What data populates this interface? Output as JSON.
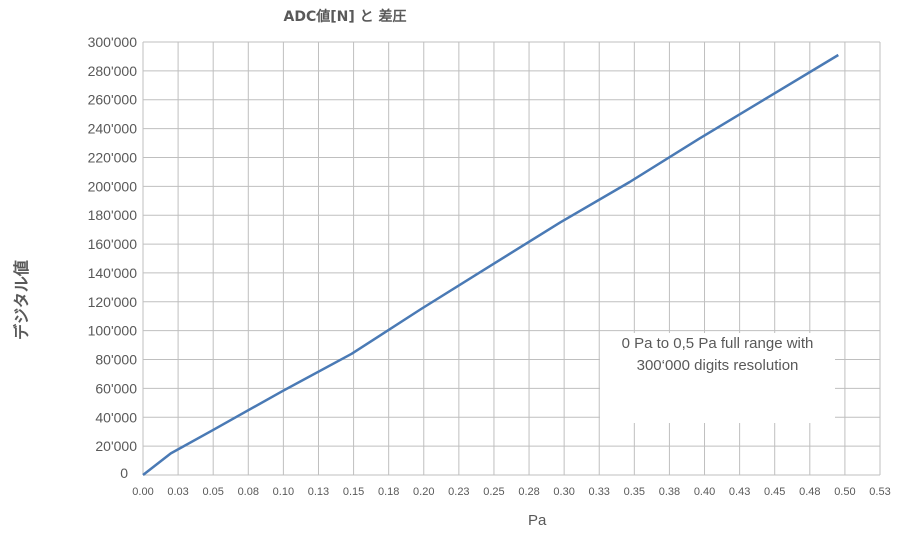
{
  "chart_data": {
    "type": "line",
    "title": "ADC値[N] と 差圧",
    "xlabel": "Pa",
    "ylabel": "デジタル値",
    "xlim": [
      0,
      0.53
    ],
    "ylim": [
      0,
      300000
    ],
    "grid": true,
    "x_ticks": [
      "0.00",
      "0.03",
      "0.05",
      "0.08",
      "0.10",
      "0.13",
      "0.15",
      "0.18",
      "0.20",
      "0.23",
      "0.25",
      "0.28",
      "0.30",
      "0.33",
      "0.35",
      "0.38",
      "0.40",
      "0.43",
      "0.45",
      "0.48",
      "0.50",
      "0.53"
    ],
    "y_ticks": [
      "0",
      "20'000",
      "40'000",
      "60'000",
      "80'000",
      "100'000",
      "120'000",
      "140'000",
      "160'000",
      "180'000",
      "200'000",
      "220'000",
      "240'000",
      "260'000",
      "280'000",
      "300'000"
    ],
    "series": [
      {
        "color": "#4a7ab5",
        "points": [
          [
            0,
            0
          ],
          [
            0.02,
            15000
          ],
          [
            0.05,
            31000
          ],
          [
            0.1,
            58000
          ],
          [
            0.15,
            84000
          ],
          [
            0.2,
            115000
          ],
          [
            0.25,
            145000
          ],
          [
            0.3,
            175000
          ],
          [
            0.35,
            203000
          ],
          [
            0.4,
            233000
          ],
          [
            0.45,
            262000
          ],
          [
            0.5,
            291000
          ]
        ]
      }
    ],
    "annotation": "0 Pa to 0,5 Pa full range with 300‘000 digits resolution"
  },
  "colors": {
    "grid": "#bfbfbf",
    "axis_text": "#595959",
    "line": "#4a7ab5",
    "watermark": "#d9d9d9"
  }
}
